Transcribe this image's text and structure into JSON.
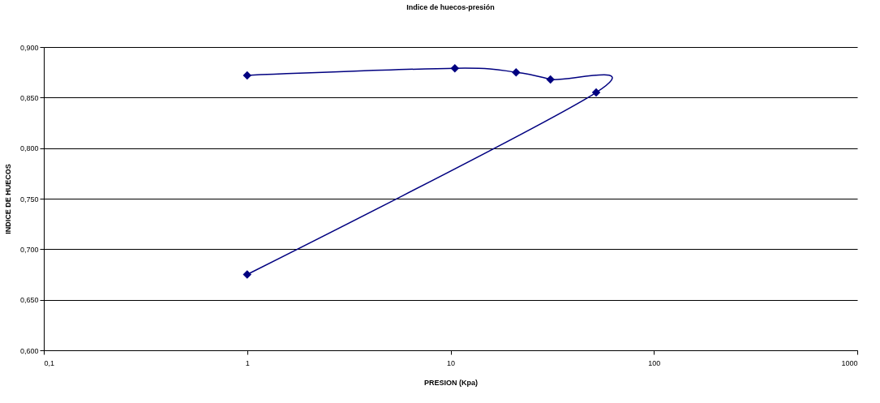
{
  "chart_data": {
    "type": "line",
    "title": "Indice de huecos-presión",
    "xlabel": "PRESION (Kpa)",
    "ylabel": "INDICE DE HUECOS",
    "x": [
      1,
      10.5,
      21,
      31,
      52,
      1
    ],
    "series": [
      {
        "color": "#000080",
        "values": [
          0.872,
          0.879,
          0.875,
          0.868,
          0.855,
          0.675
        ]
      }
    ],
    "log": "x",
    "marker": "diamond",
    "line_style": "solid",
    "grid": "y",
    "xlim": [
      0.1,
      1000
    ],
    "xticks": [
      {
        "value": 0.1,
        "label": "0,1"
      },
      1,
      10,
      100,
      1000
    ],
    "ylim": [
      0.6,
      0.9
    ],
    "yticks": [
      {
        "value": 0.6,
        "label": "0,600"
      },
      {
        "value": 0.65,
        "label": "0,650"
      },
      {
        "value": 0.7,
        "label": "0,700"
      },
      {
        "value": 0.75,
        "label": "0,750"
      },
      {
        "value": 0.8,
        "label": "0,800"
      },
      {
        "value": 0.85,
        "label": "0,850"
      },
      {
        "value": 0.9,
        "label": "0,900"
      }
    ]
  }
}
